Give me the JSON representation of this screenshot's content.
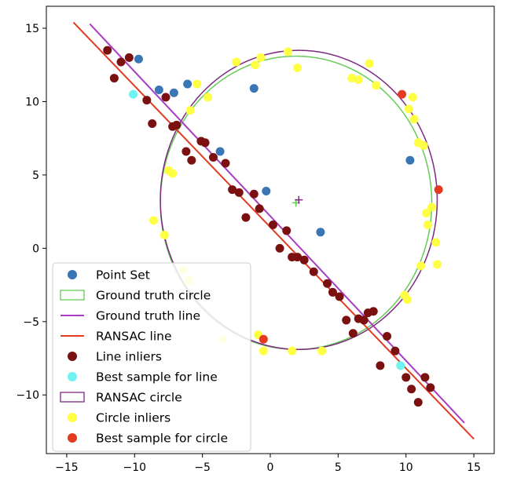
{
  "chart_data": {
    "type": "scatter",
    "xlim": [
      -16.5,
      16.5
    ],
    "ylim": [
      -14,
      16.5
    ],
    "x_ticks": [
      -15,
      -10,
      -5,
      0,
      5,
      10,
      15
    ],
    "y_ticks": [
      -10,
      -5,
      0,
      5,
      10,
      15
    ],
    "x_tick_labels": [
      "−15",
      "−10",
      "−5",
      "0",
      "5",
      "10",
      "15"
    ],
    "y_tick_labels": [
      "−10",
      "−5",
      "0",
      "5",
      "10",
      "15"
    ],
    "grid": false,
    "legend_placement": "lower-left",
    "legend": [
      {
        "label": "Point Set",
        "kind": "point",
        "color": "#3a76b5"
      },
      {
        "label": "Ground truth circle",
        "kind": "box",
        "color": "#66cc55"
      },
      {
        "label": "Ground truth line",
        "kind": "line",
        "color": "#a83cc4"
      },
      {
        "label": "RANSAC line",
        "kind": "line",
        "color": "#e23b22"
      },
      {
        "label": "Line inliers",
        "kind": "point",
        "color": "#7a1010"
      },
      {
        "label": "Best sample for line",
        "kind": "point",
        "color": "#6ef2f2"
      },
      {
        "label": "RANSAC circle",
        "kind": "box",
        "color": "#7c2a82"
      },
      {
        "label": "Circle inliers",
        "kind": "point",
        "color": "#ffff44"
      },
      {
        "label": "Best sample for circle",
        "kind": "point",
        "color": "#e23b22"
      }
    ],
    "ground_truth_circle": {
      "center": [
        1.9,
        3.1
      ],
      "radius": 10,
      "color": "#66cc55",
      "center_marker_color": "#66cc55"
    },
    "ransac_circle": {
      "center": [
        2.1,
        3.3
      ],
      "radius": 10.2,
      "color": "#7c2a82",
      "center_marker_color": "#7c2a82"
    },
    "ground_truth_line": {
      "points": [
        [
          -13.3,
          15.3
        ],
        [
          14.3,
          -11.9
        ]
      ],
      "color": "#a83cc4"
    },
    "ransac_line": {
      "points": [
        [
          -14.5,
          15.4
        ],
        [
          15.0,
          -13.0
        ]
      ],
      "color": "#e23b22"
    },
    "series": [
      {
        "name": "Point Set",
        "color": "#3a76b5",
        "points": [
          [
            -9.7,
            12.9
          ],
          [
            -8.2,
            10.8
          ],
          [
            -7.1,
            10.6
          ],
          [
            -6.1,
            11.2
          ],
          [
            -3.7,
            6.6
          ],
          [
            -1.2,
            10.9
          ],
          [
            -0.3,
            3.9
          ],
          [
            3.7,
            1.1
          ],
          [
            10.3,
            6.0
          ]
        ]
      },
      {
        "name": "Line inliers",
        "color": "#7a1010",
        "points": [
          [
            -12.0,
            13.5
          ],
          [
            -11.5,
            11.6
          ],
          [
            -11.0,
            12.7
          ],
          [
            -10.4,
            13.0
          ],
          [
            -9.1,
            10.1
          ],
          [
            -8.7,
            8.5
          ],
          [
            -7.7,
            10.3
          ],
          [
            -7.2,
            8.3
          ],
          [
            -6.9,
            8.4
          ],
          [
            -6.2,
            6.6
          ],
          [
            -5.8,
            6.0
          ],
          [
            -5.1,
            7.3
          ],
          [
            -4.8,
            7.2
          ],
          [
            -4.2,
            6.2
          ],
          [
            -3.3,
            5.8
          ],
          [
            -2.8,
            4.0
          ],
          [
            -2.3,
            3.8
          ],
          [
            -1.8,
            2.1
          ],
          [
            -1.2,
            3.7
          ],
          [
            -0.8,
            2.7
          ],
          [
            0.2,
            1.6
          ],
          [
            0.7,
            0.0
          ],
          [
            1.2,
            1.2
          ],
          [
            1.6,
            -0.6
          ],
          [
            2.0,
            -0.6
          ],
          [
            2.5,
            -0.8
          ],
          [
            3.2,
            -1.6
          ],
          [
            4.2,
            -2.4
          ],
          [
            4.6,
            -3.0
          ],
          [
            5.1,
            -3.3
          ],
          [
            5.6,
            -4.9
          ],
          [
            6.1,
            -5.8
          ],
          [
            6.5,
            -4.8
          ],
          [
            6.9,
            -4.9
          ],
          [
            7.2,
            -4.4
          ],
          [
            7.6,
            -4.3
          ],
          [
            8.1,
            -8.0
          ],
          [
            8.6,
            -6.0
          ],
          [
            9.2,
            -7.0
          ],
          [
            10.0,
            -8.8
          ],
          [
            10.4,
            -9.6
          ],
          [
            10.9,
            -10.5
          ],
          [
            11.4,
            -8.8
          ],
          [
            11.8,
            -9.5
          ]
        ]
      },
      {
        "name": "Circle inliers",
        "color": "#ffff44",
        "points": [
          [
            -2.5,
            12.7
          ],
          [
            -1.1,
            12.5
          ],
          [
            -0.7,
            13.0
          ],
          [
            1.3,
            13.4
          ],
          [
            2.0,
            12.3
          ],
          [
            7.3,
            12.6
          ],
          [
            7.8,
            11.1
          ],
          [
            6.0,
            11.6
          ],
          [
            6.5,
            11.5
          ],
          [
            -5.4,
            11.2
          ],
          [
            -4.6,
            10.3
          ],
          [
            -5.9,
            9.4
          ],
          [
            -7.5,
            5.3
          ],
          [
            -7.2,
            5.1
          ],
          [
            -8.6,
            1.9
          ],
          [
            -7.8,
            0.9
          ],
          [
            -6.4,
            -1.5
          ],
          [
            -6.0,
            -2.2
          ],
          [
            -3.5,
            -6.2
          ],
          [
            -0.9,
            -5.9
          ],
          [
            -0.5,
            -7.0
          ],
          [
            1.6,
            -7.0
          ],
          [
            3.8,
            -7.0
          ],
          [
            9.9,
            -3.2
          ],
          [
            10.1,
            -3.5
          ],
          [
            10.2,
            9.5
          ],
          [
            10.5,
            10.3
          ],
          [
            10.6,
            8.8
          ],
          [
            10.9,
            7.2
          ],
          [
            11.3,
            7.0
          ],
          [
            11.1,
            -1.2
          ],
          [
            11.5,
            2.4
          ],
          [
            11.6,
            1.6
          ],
          [
            11.9,
            2.8
          ],
          [
            12.2,
            0.4
          ],
          [
            12.3,
            -1.1
          ]
        ]
      },
      {
        "name": "Best sample for line",
        "color": "#6ef2f2",
        "points": [
          [
            -10.1,
            10.5
          ],
          [
            9.6,
            -8.0
          ]
        ]
      },
      {
        "name": "Best sample for circle",
        "color": "#e23b22",
        "points": [
          [
            9.7,
            10.5
          ],
          [
            12.4,
            4.0
          ],
          [
            -0.5,
            -6.2
          ]
        ]
      }
    ]
  }
}
